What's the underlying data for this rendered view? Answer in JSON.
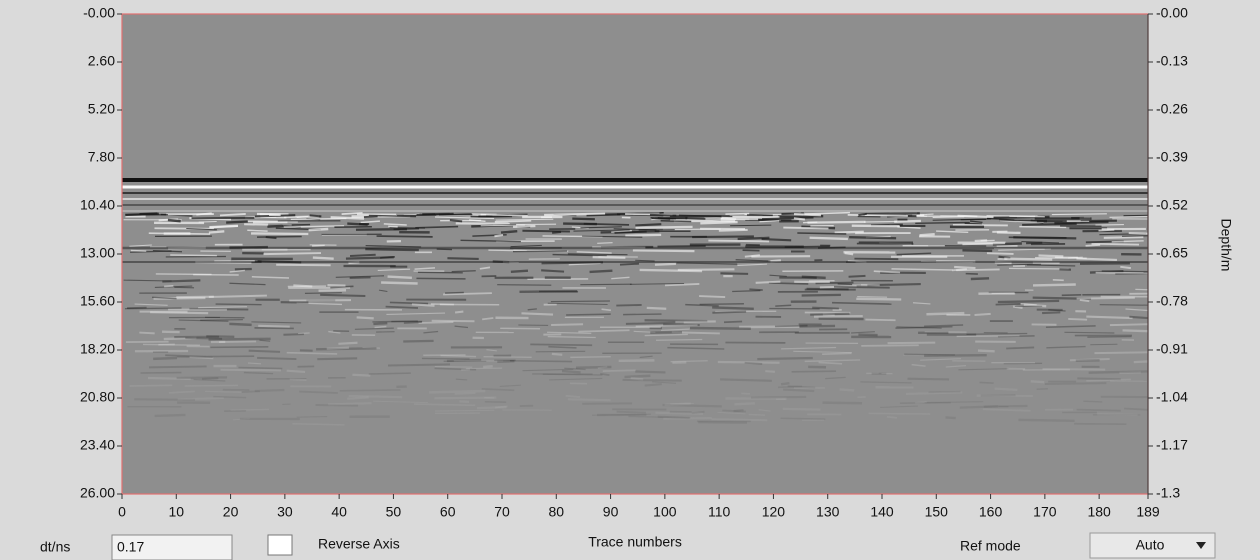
{
  "chart_data": {
    "type": "radargram",
    "xlabel": "Trace numbers",
    "y2label": "Depth/m",
    "xlim": [
      0,
      189
    ],
    "xticks": [
      0,
      10,
      20,
      30,
      40,
      50,
      60,
      70,
      80,
      90,
      100,
      110,
      120,
      130,
      140,
      150,
      160,
      170,
      180,
      189
    ],
    "ylim": [
      0,
      26
    ],
    "yticks": [
      {
        "value": 0,
        "label": "-0.00"
      },
      {
        "value": 2.6,
        "label": "2.60"
      },
      {
        "value": 5.2,
        "label": "5.20"
      },
      {
        "value": 7.8,
        "label": "7.80"
      },
      {
        "value": 10.4,
        "label": "10.40"
      },
      {
        "value": 13,
        "label": "13.00"
      },
      {
        "value": 15.6,
        "label": "15.60"
      },
      {
        "value": 18.2,
        "label": "18.20"
      },
      {
        "value": 20.8,
        "label": "20.80"
      },
      {
        "value": 23.4,
        "label": "23.40"
      },
      {
        "value": 26,
        "label": "26.00"
      }
    ],
    "y2lim": [
      0,
      -1.3
    ],
    "y2ticks": [
      {
        "value": 0,
        "label": "-0.00"
      },
      -0.13,
      -0.26,
      -0.39,
      -0.52,
      -0.65,
      -0.78,
      -0.91,
      -1.04,
      -1.17,
      -1.3
    ]
  },
  "controls": {
    "dt_label": "dt/ns",
    "dt_value": "0.17",
    "reverse_axis": "Reverse Axis",
    "ref_mode_label": "Ref mode",
    "ref_mode": "Auto"
  }
}
